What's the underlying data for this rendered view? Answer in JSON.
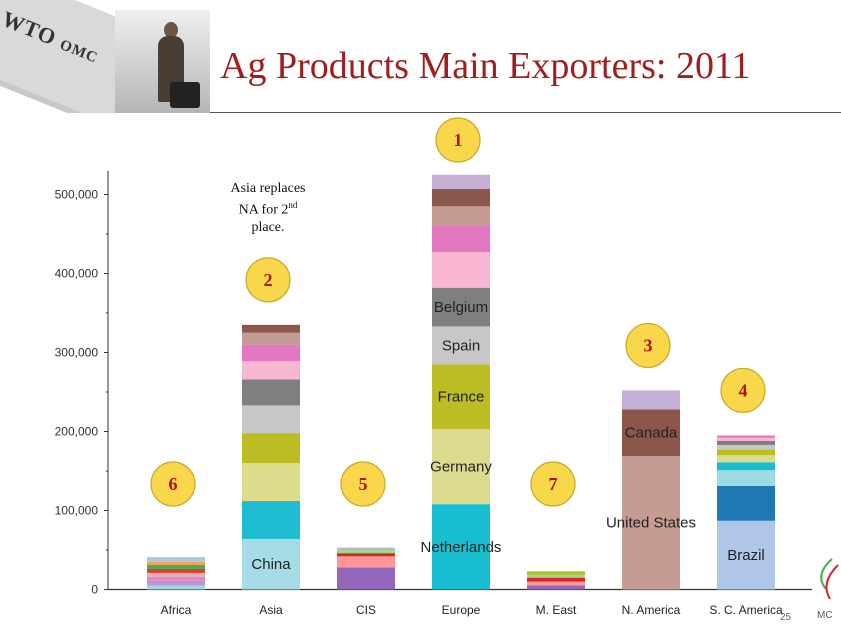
{
  "header": {
    "title": "Ag Products Main Exporters:  2011",
    "logo_text_main": "WTO",
    "logo_text_sub": "OMC"
  },
  "annotation": {
    "line1": "Asia replaces",
    "line2_prefix": "NA for 2",
    "line2_sup": "nd",
    "line3": "place."
  },
  "page_number": "25",
  "corner_text": "MC",
  "chart_data": {
    "type": "bar",
    "stacked": true,
    "categories": [
      "Africa",
      "Asia",
      "CIS",
      "Europe",
      "M. East",
      "N. America",
      "S. C. America"
    ],
    "y_ticks": [
      "0",
      "100,000",
      "200,000",
      "300,000",
      "400,000",
      "500,000"
    ],
    "ylim": [
      0,
      530000
    ],
    "grid": false,
    "legend": "none",
    "ranks": [
      "6",
      "2",
      "5",
      "1",
      "7",
      "3",
      "4"
    ],
    "stacks": [
      {
        "category": "Africa",
        "segments": [
          {
            "label": "",
            "value": 5000,
            "color": "#a6d5e2"
          },
          {
            "label": "",
            "value": 6000,
            "color": "#b49bd1"
          },
          {
            "label": "",
            "value": 5000,
            "color": "#ee82c9"
          },
          {
            "label": "",
            "value": 5000,
            "color": "#d9b3ae"
          },
          {
            "label": "",
            "value": 5000,
            "color": "#e63a3a"
          },
          {
            "label": "",
            "value": 5000,
            "color": "#4cae4c"
          },
          {
            "label": "",
            "value": 4000,
            "color": "#f0a656"
          },
          {
            "label": "",
            "value": 6000,
            "color": "#a8c8e6"
          }
        ]
      },
      {
        "category": "Asia",
        "segments": [
          {
            "label": "China",
            "value": 64000,
            "color": "#a6dce5"
          },
          {
            "label": "",
            "value": 48000,
            "color": "#1fbcd2"
          },
          {
            "label": "",
            "value": 48000,
            "color": "#dcdc8c"
          },
          {
            "label": "",
            "value": 38000,
            "color": "#bcbd22"
          },
          {
            "label": "",
            "value": 35000,
            "color": "#c7c7c7"
          },
          {
            "label": "",
            "value": 33000,
            "color": "#7f7f7f"
          },
          {
            "label": "",
            "value": 23000,
            "color": "#f7b6d2"
          },
          {
            "label": "",
            "value": 21000,
            "color": "#e377c2"
          },
          {
            "label": "",
            "value": 15000,
            "color": "#c49c94"
          },
          {
            "label": "",
            "value": 10000,
            "color": "#8c564b"
          }
        ]
      },
      {
        "category": "CIS",
        "segments": [
          {
            "label": "",
            "value": 28000,
            "color": "#9467bd"
          },
          {
            "label": "",
            "value": 14000,
            "color": "#ff9896"
          },
          {
            "label": "",
            "value": 4000,
            "color": "#d62728"
          },
          {
            "label": "",
            "value": 4000,
            "color": "#98df8a"
          },
          {
            "label": "",
            "value": 3000,
            "color": "#c5b0d5"
          }
        ]
      },
      {
        "category": "Europe",
        "segments": [
          {
            "label": "Netherlands",
            "value": 108000,
            "color": "#17becf"
          },
          {
            "label": "Germany",
            "value": 95000,
            "color": "#dbdb8d"
          },
          {
            "label": "France",
            "value": 82000,
            "color": "#bcbd22"
          },
          {
            "label": "Spain",
            "value": 48000,
            "color": "#c7c7c7"
          },
          {
            "label": "Belgium",
            "value": 49000,
            "color": "#7f7f7f"
          },
          {
            "label": "",
            "value": 45000,
            "color": "#f7b6d2"
          },
          {
            "label": "",
            "value": 34000,
            "color": "#e377c2"
          },
          {
            "label": "",
            "value": 24000,
            "color": "#c49c94"
          },
          {
            "label": "",
            "value": 22000,
            "color": "#8c564b"
          },
          {
            "label": "",
            "value": 18000,
            "color": "#c5b0d5"
          }
        ]
      },
      {
        "category": "M. East",
        "segments": [
          {
            "label": "",
            "value": 5000,
            "color": "#9467bd"
          },
          {
            "label": "",
            "value": 5000,
            "color": "#ff9896"
          },
          {
            "label": "",
            "value": 5000,
            "color": "#d62728"
          },
          {
            "label": "",
            "value": 4000,
            "color": "#98df8a"
          },
          {
            "label": "",
            "value": 4000,
            "color": "#bcbd22"
          }
        ]
      },
      {
        "category": "N. America",
        "segments": [
          {
            "label": "United States",
            "value": 169000,
            "color": "#c49c94"
          },
          {
            "label": "Canada",
            "value": 59000,
            "color": "#8c564b"
          },
          {
            "label": "",
            "value": 24000,
            "color": "#c5b0d5"
          }
        ]
      },
      {
        "category": "S. C. America",
        "segments": [
          {
            "label": "Brazil",
            "value": 87000,
            "color": "#aec7e8"
          },
          {
            "label": "",
            "value": 44000,
            "color": "#1f77b4"
          },
          {
            "label": "",
            "value": 20000,
            "color": "#9edae5"
          },
          {
            "label": "",
            "value": 10000,
            "color": "#17becf"
          },
          {
            "label": "",
            "value": 9000,
            "color": "#dbdb8d"
          },
          {
            "label": "",
            "value": 7000,
            "color": "#bcbd22"
          },
          {
            "label": "",
            "value": 6000,
            "color": "#c7c7c7"
          },
          {
            "label": "",
            "value": 5000,
            "color": "#7f7f7f"
          },
          {
            "label": "",
            "value": 4000,
            "color": "#f7b6d2"
          },
          {
            "label": "",
            "value": 3000,
            "color": "#e377c2"
          }
        ]
      }
    ]
  }
}
